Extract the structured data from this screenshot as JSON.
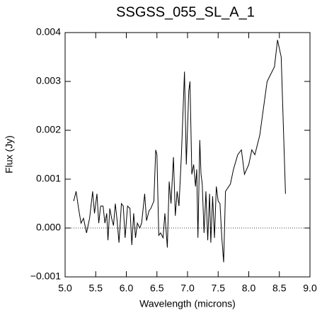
{
  "chart_data": {
    "type": "line",
    "title": "SSGSS_055_SL_A_1",
    "xlabel": "Wavelength (microns)",
    "ylabel": "Flux (Jy)",
    "hline": 0,
    "xlim": [
      5.0,
      9.0
    ],
    "ylim": [
      -0.001,
      0.004
    ],
    "xticks": [
      {
        "value": 5,
        "label": "5.0"
      },
      {
        "value": 5.5,
        "label": "5.5"
      },
      {
        "value": 6,
        "label": "6.0"
      },
      {
        "value": 6.5,
        "label": "6.5"
      },
      {
        "value": 7,
        "label": "7.0"
      },
      {
        "value": 7.5,
        "label": "7.5"
      },
      {
        "value": 8,
        "label": "8.0"
      },
      {
        "value": 8.5,
        "label": "8.5"
      },
      {
        "value": 9,
        "label": "9.0"
      }
    ],
    "yticks": [
      {
        "value": -0.001,
        "label": "−0.001"
      },
      {
        "value": 0,
        "label": "0.000"
      },
      0.001,
      0.002,
      0.003,
      0.004
    ],
    "x": [
      5.14,
      5.18,
      5.22,
      5.26,
      5.3,
      5.35,
      5.4,
      5.45,
      5.48,
      5.52,
      5.55,
      5.58,
      5.62,
      5.65,
      5.68,
      5.7,
      5.73,
      5.76,
      5.79,
      5.82,
      5.85,
      5.88,
      5.92,
      5.95,
      5.98,
      6.02,
      6.06,
      6.09,
      6.12,
      6.15,
      6.18,
      6.22,
      6.25,
      6.3,
      6.33,
      6.37,
      6.4,
      6.45,
      6.48,
      6.5,
      6.53,
      6.56,
      6.6,
      6.63,
      6.67,
      6.7,
      6.73,
      6.77,
      6.8,
      6.83,
      6.86,
      6.9,
      6.95,
      6.98,
      7.02,
      7.04,
      7.07,
      7.1,
      7.13,
      7.15,
      7.17,
      7.2,
      7.22,
      7.24,
      7.27,
      7.3,
      7.33,
      7.36,
      7.38,
      7.41,
      7.44,
      7.47,
      7.5,
      7.53,
      7.56,
      7.59,
      7.62,
      7.7,
      7.75,
      7.82,
      7.88,
      7.93,
      8.0,
      8.05,
      8.1,
      8.18,
      8.3,
      8.42,
      8.47,
      8.53,
      8.6
    ],
    "series": [
      {
        "color": "#000000",
        "values": [
          0.00055,
          0.00075,
          0.0004,
          0.0001,
          0.0002,
          -0.0001,
          0.0002,
          0.00075,
          0.0003,
          0.0007,
          0.0001,
          0.00045,
          0.00045,
          0.0001,
          0.0003,
          -0.00025,
          0.0004,
          0.0002,
          5e-05,
          0.0005,
          0.00015,
          -0.0003,
          0.0005,
          0.00045,
          -0.0002,
          0.00045,
          0.0004,
          -0.00035,
          0.0003,
          -0.0002,
          0.0001,
          0.0,
          0.0001,
          0.0007,
          0.00015,
          0.00035,
          0.0004,
          0.00055,
          0.0016,
          0.0015,
          -0.00015,
          -0.0001,
          -0.0002,
          0.0003,
          -0.0004,
          0.00095,
          0.0005,
          0.00145,
          0.00025,
          0.00075,
          0.00045,
          0.0015,
          0.0032,
          0.0013,
          0.0028,
          0.003,
          0.0011,
          0.0013,
          0.00085,
          0.0012,
          -0.0002,
          0.0018,
          0.0011,
          0.0009,
          -0.0001,
          0.00075,
          -0.00025,
          0.0007,
          -0.0003,
          0.00065,
          -0.0002,
          0.00085,
          0.00055,
          0.0005,
          -0.0002,
          -0.0007,
          0.00075,
          0.0009,
          0.0012,
          0.0015,
          0.0016,
          0.0011,
          0.0013,
          0.0016,
          0.0015,
          0.0019,
          0.003,
          0.0033,
          0.00385,
          0.0035,
          0.0007
        ]
      }
    ]
  }
}
